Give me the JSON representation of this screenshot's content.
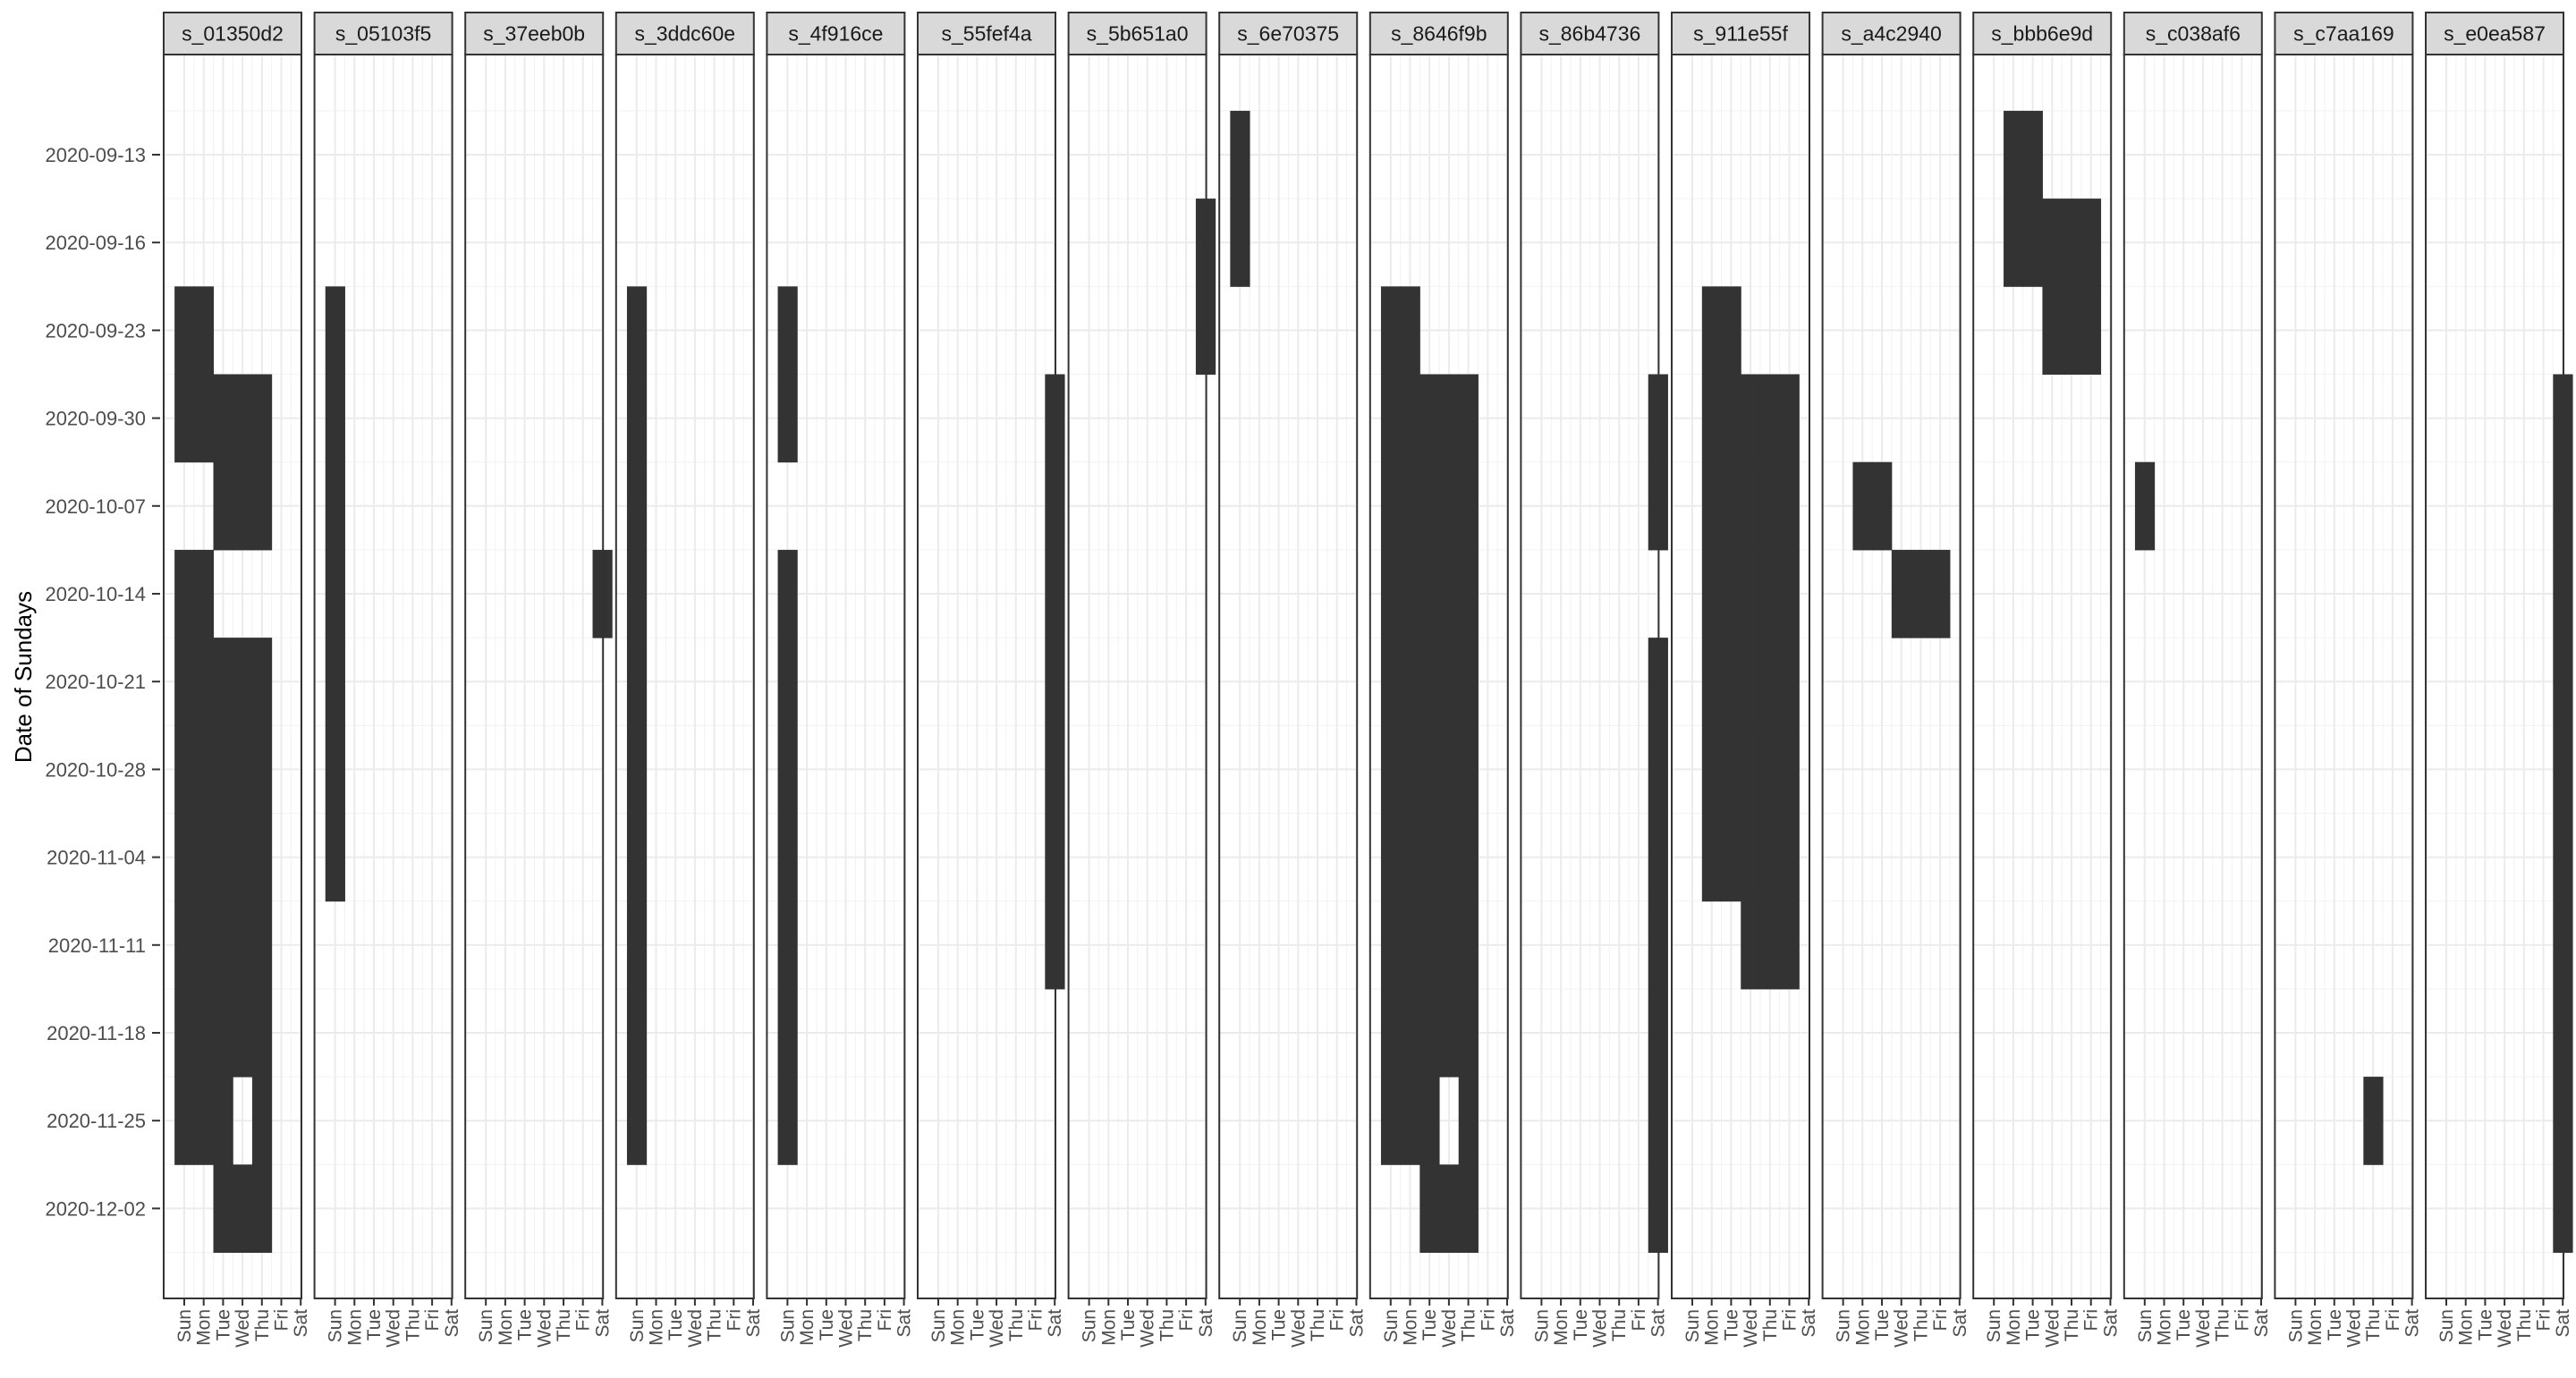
{
  "chart_data": {
    "type": "heatmap",
    "title": "",
    "xlabel": "",
    "ylabel": "Date of Sundays",
    "grid": true,
    "legend": "none",
    "fill_color": "#333333",
    "panel_header_color": "#d9d9d9",
    "days": [
      "Sun",
      "Mon",
      "Tue",
      "Wed",
      "Thu",
      "Fri",
      "Sat"
    ],
    "weeks": [
      "2020-09-13",
      "2020-09-16",
      "2020-09-23",
      "2020-09-30",
      "2020-10-07",
      "2020-10-14",
      "2020-10-21",
      "2020-10-28",
      "2020-11-04",
      "2020-11-11",
      "2020-11-18",
      "2020-11-25",
      "2020-12-02"
    ],
    "panels": [
      {
        "id": "s_01350d2",
        "cells": [
          [
            2,
            0
          ],
          [
            2,
            1
          ],
          [
            3,
            0
          ],
          [
            3,
            1
          ],
          [
            3,
            2
          ],
          [
            3,
            3
          ],
          [
            3,
            4
          ],
          [
            4,
            2
          ],
          [
            4,
            3
          ],
          [
            4,
            4
          ],
          [
            5,
            0
          ],
          [
            5,
            1
          ],
          [
            6,
            0
          ],
          [
            6,
            1
          ],
          [
            6,
            2
          ],
          [
            6,
            3
          ],
          [
            6,
            4
          ],
          [
            7,
            0
          ],
          [
            7,
            1
          ],
          [
            7,
            2
          ],
          [
            7,
            3
          ],
          [
            7,
            4
          ],
          [
            8,
            0
          ],
          [
            8,
            1
          ],
          [
            8,
            2
          ],
          [
            8,
            3
          ],
          [
            8,
            4
          ],
          [
            9,
            0
          ],
          [
            9,
            1
          ],
          [
            9,
            2
          ],
          [
            9,
            3
          ],
          [
            9,
            4
          ],
          [
            10,
            0
          ],
          [
            10,
            1
          ],
          [
            10,
            2
          ],
          [
            10,
            3
          ],
          [
            10,
            4
          ],
          [
            11,
            0
          ],
          [
            11,
            1
          ],
          [
            11,
            2
          ],
          [
            11,
            4
          ],
          [
            12,
            2
          ],
          [
            12,
            3
          ],
          [
            12,
            4
          ]
        ]
      },
      {
        "id": "s_05103f5",
        "cells": [
          [
            2,
            0
          ],
          [
            3,
            0
          ],
          [
            4,
            0
          ],
          [
            5,
            0
          ],
          [
            6,
            0
          ],
          [
            7,
            0
          ],
          [
            8,
            0
          ]
        ]
      },
      {
        "id": "s_37eeb0b",
        "cells": [
          [
            5,
            6
          ]
        ]
      },
      {
        "id": "s_3ddc60e",
        "cells": [
          [
            2,
            0
          ],
          [
            3,
            0
          ],
          [
            4,
            0
          ],
          [
            5,
            0
          ],
          [
            6,
            0
          ],
          [
            7,
            0
          ],
          [
            8,
            0
          ],
          [
            9,
            0
          ],
          [
            10,
            0
          ],
          [
            11,
            0
          ]
        ]
      },
      {
        "id": "s_4f916ce",
        "cells": [
          [
            2,
            0
          ],
          [
            3,
            0
          ],
          [
            5,
            0
          ],
          [
            6,
            0
          ],
          [
            7,
            0
          ],
          [
            8,
            0
          ],
          [
            9,
            0
          ],
          [
            10,
            0
          ],
          [
            11,
            0
          ]
        ]
      },
      {
        "id": "s_55fef4a",
        "cells": [
          [
            3,
            6
          ],
          [
            4,
            6
          ],
          [
            5,
            6
          ],
          [
            6,
            6
          ],
          [
            7,
            6
          ],
          [
            8,
            6
          ],
          [
            9,
            6
          ]
        ]
      },
      {
        "id": "s_5b651a0",
        "cells": [
          [
            1,
            6
          ],
          [
            2,
            6
          ]
        ]
      },
      {
        "id": "s_6e70375",
        "cells": [
          [
            0,
            0
          ],
          [
            1,
            0
          ]
        ]
      },
      {
        "id": "s_8646f9b",
        "cells": [
          [
            2,
            0
          ],
          [
            2,
            1
          ],
          [
            3,
            0
          ],
          [
            3,
            1
          ],
          [
            3,
            2
          ],
          [
            3,
            3
          ],
          [
            3,
            4
          ],
          [
            4,
            0
          ],
          [
            4,
            1
          ],
          [
            4,
            2
          ],
          [
            4,
            3
          ],
          [
            4,
            4
          ],
          [
            5,
            0
          ],
          [
            5,
            1
          ],
          [
            5,
            2
          ],
          [
            5,
            3
          ],
          [
            5,
            4
          ],
          [
            6,
            0
          ],
          [
            6,
            1
          ],
          [
            6,
            2
          ],
          [
            6,
            3
          ],
          [
            6,
            4
          ],
          [
            7,
            0
          ],
          [
            7,
            1
          ],
          [
            7,
            2
          ],
          [
            7,
            3
          ],
          [
            7,
            4
          ],
          [
            8,
            0
          ],
          [
            8,
            1
          ],
          [
            8,
            2
          ],
          [
            8,
            3
          ],
          [
            8,
            4
          ],
          [
            9,
            0
          ],
          [
            9,
            1
          ],
          [
            9,
            2
          ],
          [
            9,
            3
          ],
          [
            9,
            4
          ],
          [
            10,
            0
          ],
          [
            10,
            1
          ],
          [
            10,
            2
          ],
          [
            10,
            3
          ],
          [
            10,
            4
          ],
          [
            11,
            0
          ],
          [
            11,
            1
          ],
          [
            11,
            2
          ],
          [
            11,
            4
          ],
          [
            12,
            2
          ],
          [
            12,
            3
          ],
          [
            12,
            4
          ]
        ]
      },
      {
        "id": "s_86b4736",
        "cells": [
          [
            3,
            6
          ],
          [
            4,
            6
          ],
          [
            6,
            6
          ],
          [
            7,
            6
          ],
          [
            8,
            6
          ],
          [
            9,
            6
          ],
          [
            10,
            6
          ],
          [
            11,
            6
          ],
          [
            12,
            6
          ]
        ]
      },
      {
        "id": "s_911e55f",
        "cells": [
          [
            2,
            1
          ],
          [
            2,
            2
          ],
          [
            3,
            1
          ],
          [
            3,
            2
          ],
          [
            3,
            3
          ],
          [
            3,
            4
          ],
          [
            3,
            5
          ],
          [
            4,
            1
          ],
          [
            4,
            2
          ],
          [
            4,
            3
          ],
          [
            4,
            4
          ],
          [
            4,
            5
          ],
          [
            5,
            1
          ],
          [
            5,
            2
          ],
          [
            5,
            3
          ],
          [
            5,
            4
          ],
          [
            5,
            5
          ],
          [
            6,
            1
          ],
          [
            6,
            2
          ],
          [
            6,
            3
          ],
          [
            6,
            4
          ],
          [
            6,
            5
          ],
          [
            7,
            1
          ],
          [
            7,
            2
          ],
          [
            7,
            3
          ],
          [
            7,
            4
          ],
          [
            7,
            5
          ],
          [
            8,
            1
          ],
          [
            8,
            2
          ],
          [
            8,
            3
          ],
          [
            8,
            4
          ],
          [
            8,
            5
          ],
          [
            9,
            3
          ],
          [
            9,
            4
          ],
          [
            9,
            5
          ]
        ]
      },
      {
        "id": "s_a4c2940",
        "cells": [
          [
            4,
            1
          ],
          [
            4,
            2
          ],
          [
            5,
            3
          ],
          [
            5,
            4
          ],
          [
            5,
            5
          ]
        ]
      },
      {
        "id": "s_bbb6e9d",
        "cells": [
          [
            0,
            1
          ],
          [
            0,
            2
          ],
          [
            1,
            1
          ],
          [
            1,
            2
          ],
          [
            1,
            3
          ],
          [
            1,
            4
          ],
          [
            1,
            5
          ],
          [
            2,
            3
          ],
          [
            2,
            4
          ],
          [
            2,
            5
          ]
        ]
      },
      {
        "id": "s_c038af6",
        "cells": [
          [
            4,
            0
          ]
        ]
      },
      {
        "id": "s_c7aa169",
        "cells": [
          [
            11,
            4
          ]
        ]
      },
      {
        "id": "s_e0ea587",
        "cells": [
          [
            3,
            6
          ],
          [
            4,
            6
          ],
          [
            5,
            6
          ],
          [
            6,
            6
          ],
          [
            7,
            6
          ],
          [
            8,
            6
          ],
          [
            9,
            6
          ],
          [
            10,
            6
          ],
          [
            11,
            6
          ],
          [
            12,
            6
          ]
        ]
      }
    ]
  }
}
